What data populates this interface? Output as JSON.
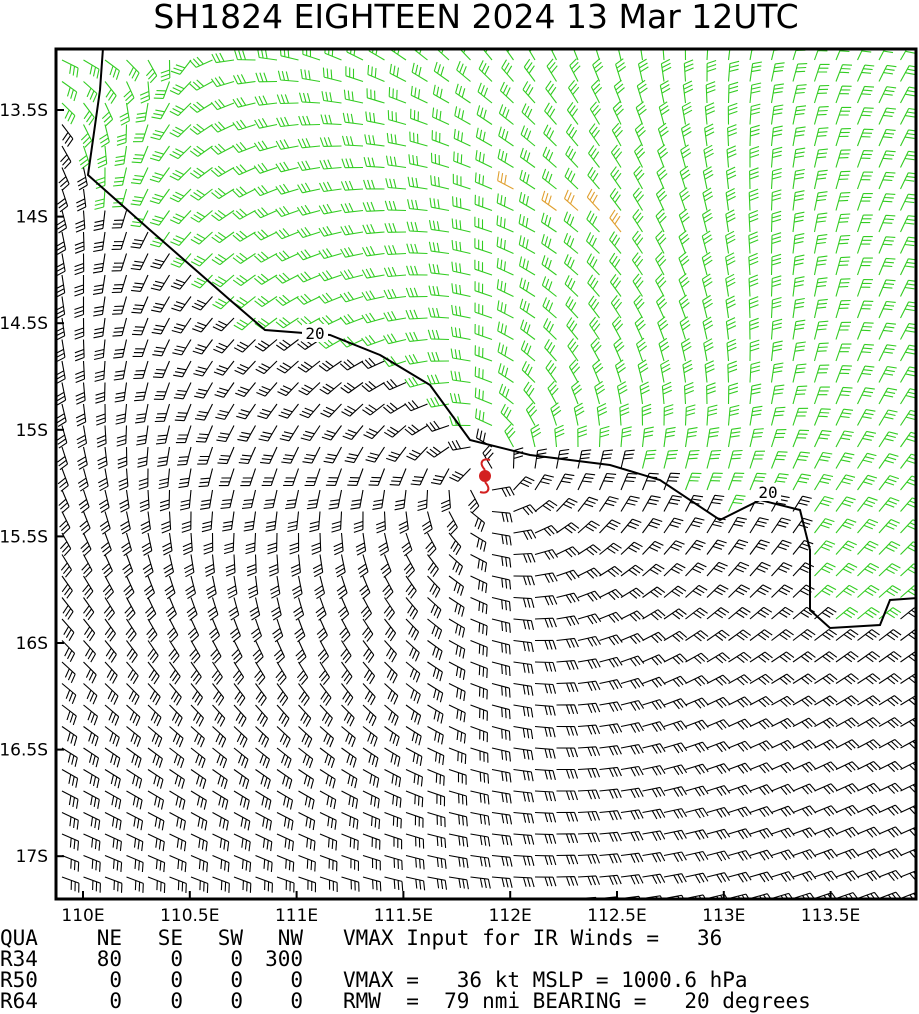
{
  "header": {
    "title": "SH1824   EIGHTEEN 2024 13 Mar 12UTC"
  },
  "map": {
    "lat_labels": [
      "13.5S",
      "14S",
      "14.5S",
      "15S",
      "15.5S",
      "16S",
      "16.5S",
      "17S"
    ],
    "lon_labels": [
      "110E",
      "110.5E",
      "111E",
      "111.5E",
      "112E",
      "112.5E",
      "113E",
      "113.5E"
    ],
    "contour_labels": [
      "20",
      "20"
    ]
  },
  "table": {
    "header": [
      "QUA",
      "NE",
      "SE",
      "SW",
      "NW"
    ],
    "rows": [
      [
        "R34",
        "80",
        "0",
        "0",
        "300"
      ],
      [
        "R50",
        "0",
        "0",
        "0",
        "0"
      ],
      [
        "R64",
        "0",
        "0",
        "0",
        "0"
      ]
    ]
  },
  "info": {
    "line1": "VMAX Input for IR Winds =   36",
    "line3": "VMAX =   36 kt MSLP = 1000.6 hPa",
    "line4": "RMW  =  79 nmi BEARING =   20 degrees"
  }
}
